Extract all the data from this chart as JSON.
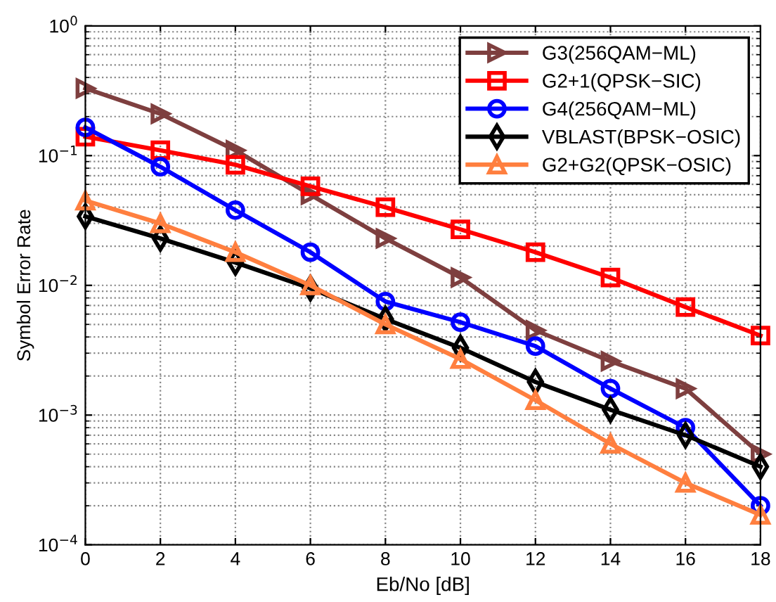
{
  "chart_data": {
    "type": "line",
    "xlabel": "Eb/No [dB]",
    "ylabel": "Symbol Error Rate",
    "log": "y",
    "grid": true,
    "legend": "top right",
    "x": [
      0,
      2,
      4,
      6,
      8,
      10,
      12,
      14,
      16,
      18
    ],
    "xlim": [
      0,
      18
    ],
    "xticks": [
      0,
      2,
      4,
      6,
      8,
      10,
      12,
      14,
      16,
      18
    ],
    "ylim": [
      0.0001,
      1
    ],
    "yticks": [
      {
        "value": 0.0001,
        "label": "10$^{−4}$"
      },
      {
        "value": 0.001,
        "label": "10$^{−3}$"
      },
      {
        "value": 0.01,
        "label": "10$^{−2}$"
      },
      {
        "value": 0.1,
        "label": "10$^{−1}$"
      },
      {
        "value": 1,
        "label": "10$^{0}$"
      }
    ],
    "series": [
      {
        "name": "G3(256QAM−ML)",
        "color": "#7e3f3f",
        "marker": "triangle",
        "values": [
          0.33,
          0.21,
          0.11,
          0.05,
          0.023,
          0.0115,
          0.0045,
          0.0026,
          0.0016,
          0.0005
        ]
      },
      {
        "name": "G2+1(QPSK−SIC)",
        "color": "#ff0000",
        "marker": "square",
        "values": [
          0.14,
          0.11,
          0.085,
          0.058,
          0.04,
          0.027,
          0.018,
          0.0115,
          0.0068,
          0.0041
        ]
      },
      {
        "name": "G4(256QAM−ML)",
        "color": "#0000ff",
        "marker": "circle",
        "values": [
          0.165,
          0.082,
          0.038,
          0.018,
          0.0075,
          0.0052,
          0.0034,
          0.0016,
          0.0008,
          0.0002
        ]
      },
      {
        "name": "VBLAST(BPSK−OSIC)",
        "color": "#000000",
        "marker": "diamond",
        "values": [
          0.034,
          0.023,
          0.015,
          0.0095,
          0.0055,
          0.0033,
          0.0018,
          0.0011,
          0.0007,
          0.0004
        ]
      },
      {
        "name": "G2+G2(QPSK−OSIC)",
        "color": "#ff7f3f",
        "marker": "triangle_up",
        "values": [
          0.045,
          0.03,
          0.018,
          0.01,
          0.005,
          0.0027,
          0.0013,
          0.0006,
          0.0003,
          0.00017
        ]
      }
    ]
  }
}
